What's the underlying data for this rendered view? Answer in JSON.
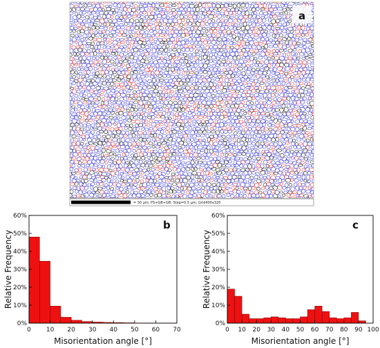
{
  "panels": {
    "a": {
      "label": "a",
      "scale_bar_text": "= 30 µm; PS+GB+GB; Step=0.5 µm; Grid400x320"
    },
    "b": {
      "label": "b"
    },
    "c": {
      "label": "c"
    }
  },
  "colors": {
    "bar_fill": "#ee1111",
    "bar_stroke": "#7a0000",
    "grain_blue": "#3a3ad8",
    "grain_red": "#e23a3a",
    "grain_black": "#1a1a1a"
  },
  "chart_data": [
    {
      "type": "bar",
      "panel": "b",
      "xlabel": "Misorientation angle [°]",
      "ylabel": "Relative Frequency",
      "xlim": [
        0,
        70
      ],
      "ylim": [
        0,
        60
      ],
      "x_ticks": [
        "0",
        "10",
        "20",
        "30",
        "40",
        "50",
        "60",
        "70"
      ],
      "y_ticks": [
        "0%",
        "10%",
        "20%",
        "30%",
        "40%",
        "50%",
        "60%"
      ],
      "bin_width": 5,
      "bin_starts": [
        0,
        5,
        10,
        15,
        20,
        25,
        30,
        35,
        40,
        45,
        50,
        55,
        60,
        65
      ],
      "values": [
        48,
        34.5,
        9.5,
        3.3,
        1.6,
        0.9,
        0.6,
        0.4,
        0.3,
        0.2,
        0.1,
        0.1,
        0.05,
        0.05
      ]
    },
    {
      "type": "bar",
      "panel": "c",
      "xlabel": "Misorientation angle [°]",
      "ylabel": "Relative Frequency",
      "xlim": [
        0,
        100
      ],
      "ylim": [
        0,
        60
      ],
      "x_ticks": [
        "0",
        "10",
        "20",
        "30",
        "40",
        "50",
        "60",
        "70",
        "80",
        "90",
        "100"
      ],
      "y_ticks": [
        "0%",
        "10%",
        "20%",
        "30%",
        "40%",
        "50%",
        "60%"
      ],
      "bin_width": 5,
      "bin_starts": [
        0,
        5,
        10,
        15,
        20,
        25,
        30,
        35,
        40,
        45,
        50,
        55,
        60,
        65,
        70,
        75,
        80,
        85,
        90
      ],
      "values": [
        19,
        15,
        5,
        2.5,
        2.5,
        3,
        3.5,
        3,
        2.5,
        2.5,
        3.5,
        7.5,
        9.5,
        6.5,
        3,
        2.5,
        3,
        6,
        1.3
      ]
    }
  ]
}
